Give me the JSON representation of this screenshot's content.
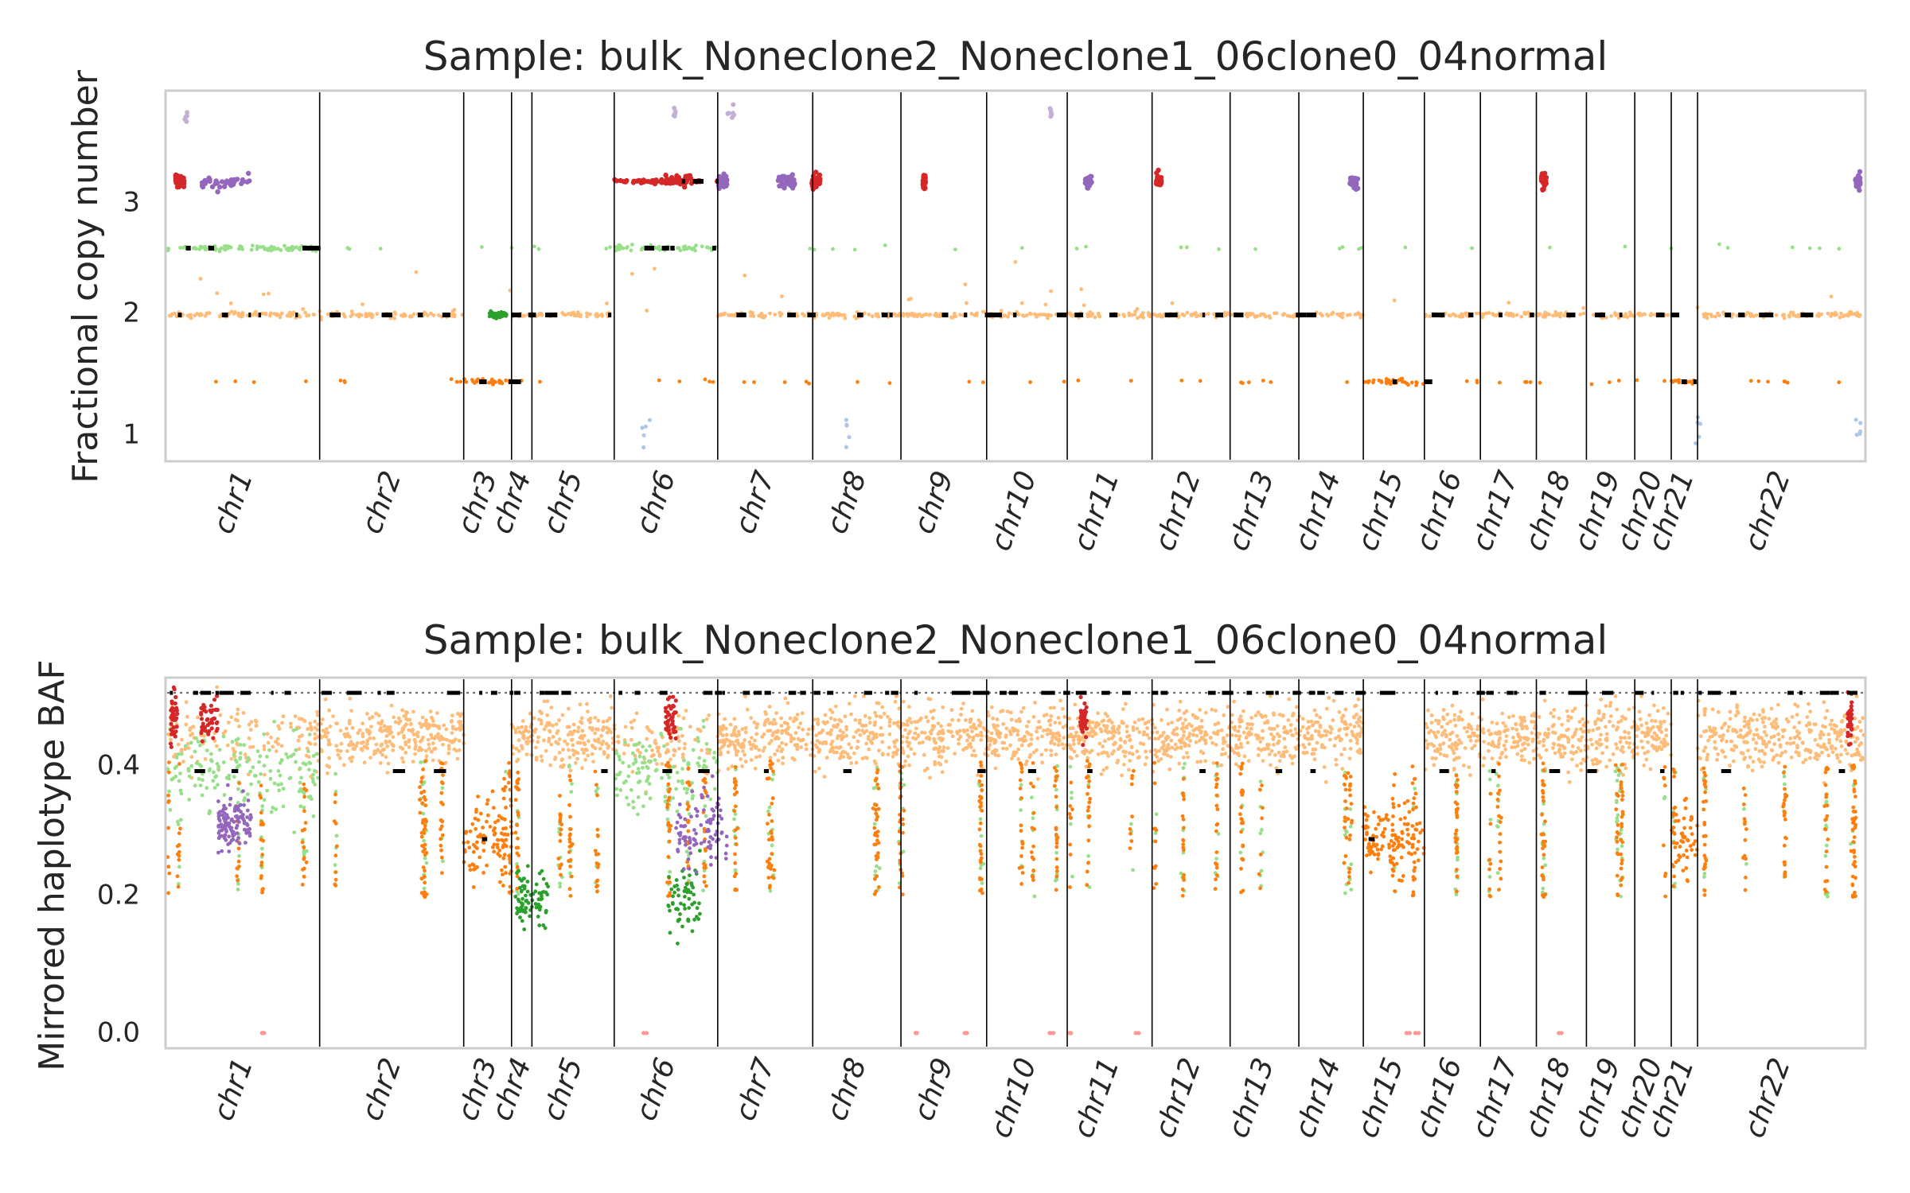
{
  "figure": {
    "colors": {
      "clone_a": "#98df8a",
      "clone_a_dark": "#2ca02c",
      "clone_b": "#ffbb78",
      "clone_b_dark": "#ff7f0e",
      "clone_c": "#d62728",
      "clone_d": "#9467bd",
      "clone_d_light": "#c5b0d5",
      "clone_e": "#ff9896",
      "clone_f": "#aec7e8",
      "segment": "#000000",
      "frame": "#cccccc"
    }
  },
  "chart_data": [
    {
      "type": "scatter",
      "title": "Sample: bulk_Noneclone2_Noneclone1_06clone0_04normal",
      "xlabel": "",
      "ylabel": "Fractional copy number",
      "ylim": [
        0.7,
        4.0
      ],
      "yticks": [
        "1",
        "2",
        "3"
      ],
      "grid": false,
      "chromosomes": [
        "chr1",
        "chr2",
        "chr3",
        "chr4",
        "chr5",
        "chr6",
        "chr7",
        "chr8",
        "chr9",
        "chr10",
        "chr11",
        "chr12",
        "chr13",
        "chr14",
        "chr15",
        "chr16",
        "chr17",
        "chr18",
        "chr19",
        "chr20",
        "chr21",
        "chr22"
      ],
      "chrom_bounds": [
        0,
        0.0899,
        0.1748,
        0.203,
        0.215,
        0.2635,
        0.3245,
        0.3805,
        0.4325,
        0.483,
        0.5305,
        0.5805,
        0.6265,
        0.667,
        0.705,
        0.741,
        0.774,
        0.807,
        0.8365,
        0.865,
        0.8865,
        0.902,
        1.0
      ],
      "segment_levels": [
        {
          "chrom": "chr1",
          "level": 2.6,
          "clone": "clone_a"
        },
        {
          "chrom": "chr1",
          "level": 2.0,
          "clone": "clone_b"
        },
        {
          "chrom": "chr2",
          "level": 2.0,
          "clone": "clone_b"
        },
        {
          "chrom": "chr3",
          "level": 1.4,
          "clone": "clone_b_dark"
        },
        {
          "chrom": "chr4",
          "level": 2.0,
          "clone": "clone_b"
        },
        {
          "chrom": "chr5",
          "level": 2.0,
          "clone": "clone_b"
        },
        {
          "chrom": "chr6",
          "level": 2.6,
          "clone": "clone_a"
        },
        {
          "chrom": "chr6",
          "level": 3.2,
          "clone": "clone_c"
        },
        {
          "chrom": "chr7",
          "level": 2.0,
          "clone": "clone_b"
        },
        {
          "chrom": "chr8",
          "level": 2.0,
          "clone": "clone_b"
        },
        {
          "chrom": "chr9",
          "level": 2.0,
          "clone": "clone_b"
        },
        {
          "chrom": "chr10",
          "level": 2.0,
          "clone": "clone_b"
        },
        {
          "chrom": "chr11",
          "level": 2.0,
          "clone": "clone_b"
        },
        {
          "chrom": "chr12",
          "level": 2.0,
          "clone": "clone_b"
        },
        {
          "chrom": "chr13",
          "level": 2.0,
          "clone": "clone_b"
        },
        {
          "chrom": "chr14",
          "level": 2.0,
          "clone": "clone_b"
        },
        {
          "chrom": "chr15",
          "level": 1.4,
          "clone": "clone_b_dark"
        },
        {
          "chrom": "chr16",
          "level": 2.0,
          "clone": "clone_b"
        },
        {
          "chrom": "chr17",
          "level": 2.0,
          "clone": "clone_b"
        },
        {
          "chrom": "chr18",
          "level": 2.0,
          "clone": "clone_b"
        },
        {
          "chrom": "chr19",
          "level": 2.0,
          "clone": "clone_b"
        },
        {
          "chrom": "chr20",
          "level": 2.0,
          "clone": "clone_b"
        },
        {
          "chrom": "chr21",
          "level": 1.4,
          "clone": "clone_b_dark"
        },
        {
          "chrom": "chr22",
          "level": 2.0,
          "clone": "clone_b"
        }
      ]
    },
    {
      "type": "scatter",
      "title": "Sample: bulk_Noneclone2_Noneclone1_06clone0_04normal",
      "xlabel": "",
      "ylabel": "Mirrored haplotype BAF",
      "ylim": [
        -0.02,
        0.52
      ],
      "yticks": [
        "0.0",
        "0.2",
        "0.4"
      ],
      "grid": false,
      "chromosomes": [
        "chr1",
        "chr2",
        "chr3",
        "chr4",
        "chr5",
        "chr6",
        "chr7",
        "chr8",
        "chr9",
        "chr10",
        "chr11",
        "chr12",
        "chr13",
        "chr14",
        "chr15",
        "chr16",
        "chr17",
        "chr18",
        "chr19",
        "chr20",
        "chr21",
        "chr22"
      ],
      "reference_line": 0.5,
      "segment_levels": [
        {
          "level": 0.5,
          "clone": "segment"
        },
        {
          "level": 0.385,
          "clone": "clone_a"
        },
        {
          "level": 0.285,
          "clone": "clone_b_dark"
        }
      ]
    }
  ]
}
